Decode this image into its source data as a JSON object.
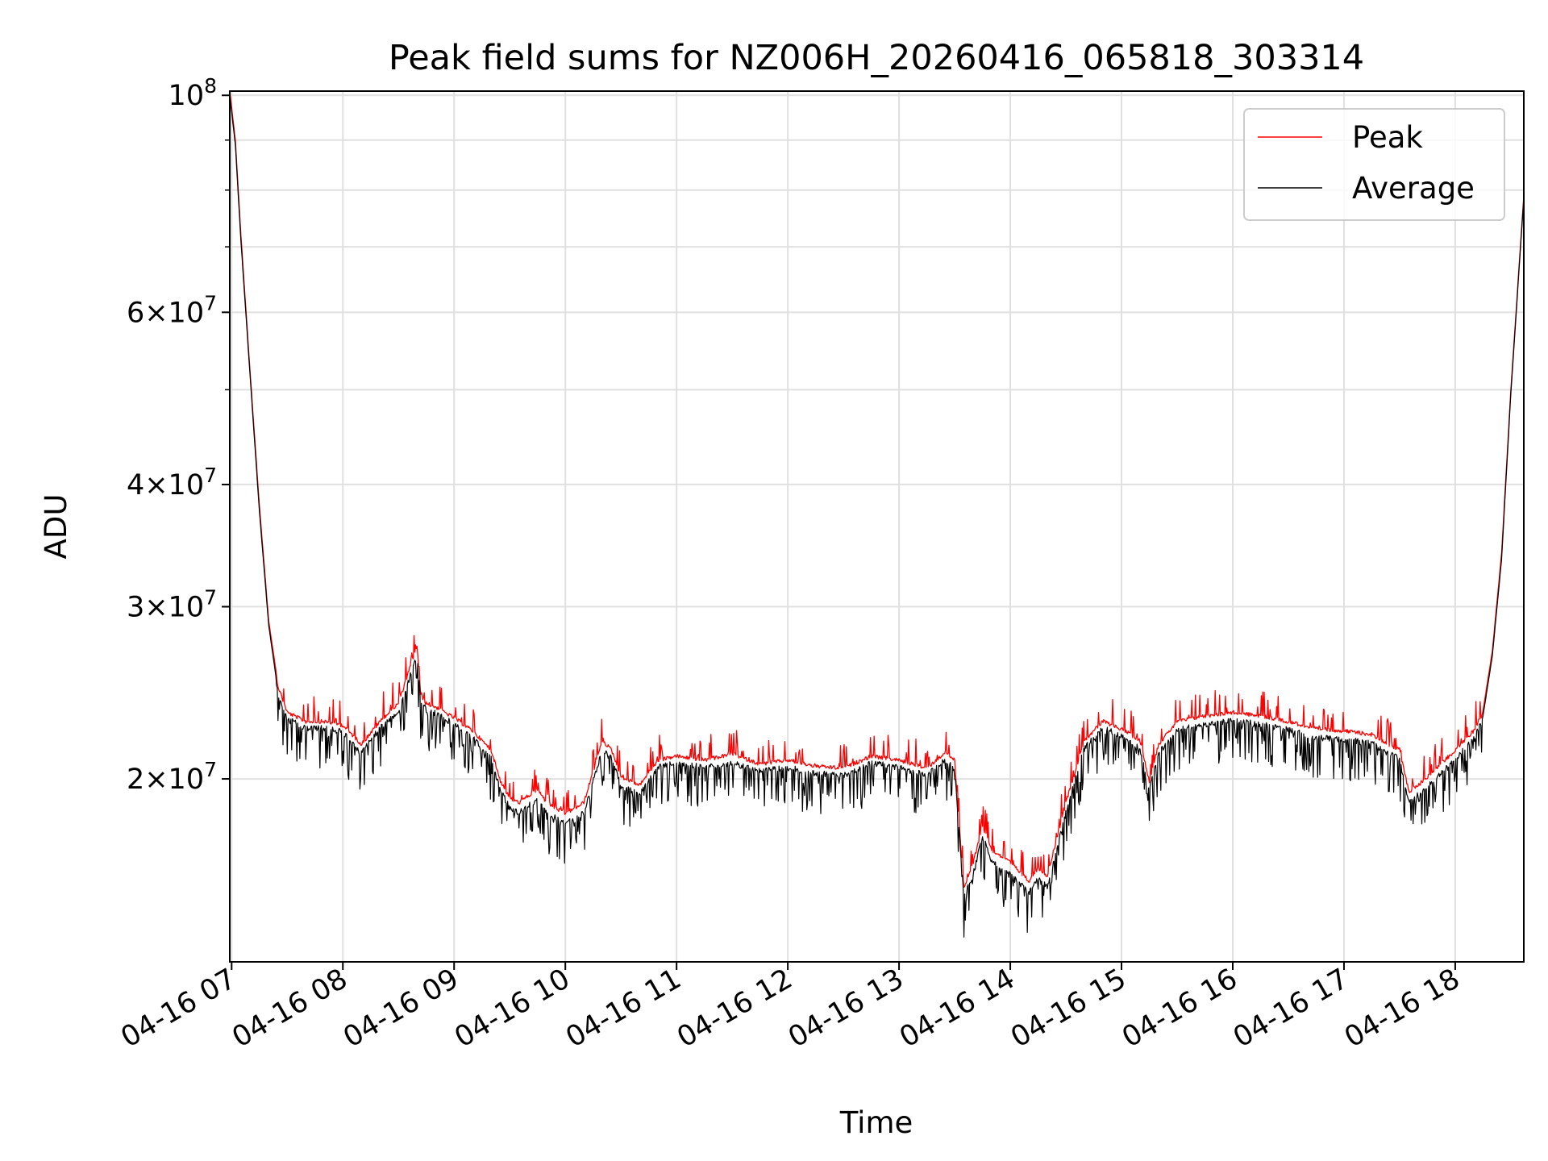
{
  "chart_data": {
    "type": "line",
    "title": "Peak field sums for NZ006H_20260416_065818_303314",
    "xlabel": "Time",
    "ylabel": "ADU",
    "yscale": "log",
    "ylim": [
      13000000,
      101000000
    ],
    "xlim": [
      "04-16 06:59",
      "04-16 18:37"
    ],
    "x_tick_labels": [
      "04-16 07",
      "04-16 08",
      "04-16 09",
      "04-16 10",
      "04-16 11",
      "04-16 12",
      "04-16 13",
      "04-16 14",
      "04-16 15",
      "04-16 16",
      "04-16 17",
      "04-16 18"
    ],
    "y_tick_labels": [
      {
        "value": 20000000,
        "mantissa": "2",
        "exponent": "7"
      },
      {
        "value": 30000000,
        "mantissa": "3",
        "exponent": "7"
      },
      {
        "value": 40000000,
        "mantissa": "4",
        "exponent": "7"
      },
      {
        "value": 60000000,
        "mantissa": "6",
        "exponent": "7"
      },
      {
        "value": 100000000,
        "mantissa": "",
        "exponent": "8"
      }
    ],
    "y_tick_base": "10",
    "y_tick_times": "×",
    "grid": true,
    "legend_position": "top-right",
    "series": [
      {
        "name": "Peak",
        "color": "#ff0000",
        "x": [
          "06:59",
          "07:02",
          "07:05",
          "07:10",
          "07:15",
          "07:20",
          "07:25",
          "07:30",
          "07:40",
          "07:50",
          "08:00",
          "08:10",
          "08:20",
          "08:25",
          "08:30",
          "08:40",
          "08:42",
          "08:45",
          "08:50",
          "09:00",
          "09:10",
          "09:20",
          "09:25",
          "09:30",
          "09:35",
          "09:40",
          "09:45",
          "09:50",
          "10:00",
          "10:10",
          "10:20",
          "10:25",
          "10:30",
          "10:40",
          "10:50",
          "11:00",
          "11:15",
          "11:30",
          "11:45",
          "12:00",
          "12:15",
          "12:30",
          "12:45",
          "13:00",
          "13:15",
          "13:25",
          "13:30",
          "13:35",
          "13:40",
          "13:45",
          "13:50",
          "14:00",
          "14:10",
          "14:15",
          "14:20",
          "14:30",
          "14:40",
          "14:50",
          "15:00",
          "15:10",
          "15:15",
          "15:20",
          "15:30",
          "15:45",
          "16:00",
          "16:15",
          "16:30",
          "16:45",
          "17:00",
          "17:15",
          "17:20",
          "17:30",
          "17:35",
          "17:40",
          "17:50",
          "18:00",
          "18:10",
          "18:15",
          "18:20",
          "18:25",
          "18:30",
          "18:37"
        ],
        "y": [
          101000000,
          90000000,
          72000000,
          52000000,
          38000000,
          29000000,
          25000000,
          23500000,
          23000000,
          23000000,
          22800000,
          21800000,
          23000000,
          23500000,
          24000000,
          27500000,
          24500000,
          24000000,
          23800000,
          23200000,
          22500000,
          21500000,
          20000000,
          19200000,
          19000000,
          19300000,
          19600000,
          19000000,
          18500000,
          19000000,
          22000000,
          21500000,
          20200000,
          19800000,
          21000000,
          21200000,
          21000000,
          21300000,
          20800000,
          21000000,
          20700000,
          20600000,
          21200000,
          21000000,
          20600000,
          21400000,
          21000000,
          15500000,
          16500000,
          18000000,
          17000000,
          16500000,
          15800000,
          16300000,
          16000000,
          19000000,
          22000000,
          23000000,
          22600000,
          22000000,
          20000000,
          21800000,
          23000000,
          23300000,
          23500000,
          23300000,
          23000000,
          22600000,
          22500000,
          22300000,
          22000000,
          21500000,
          19500000,
          19800000,
          20600000,
          21500000,
          22500000,
          23500000,
          27000000,
          34000000,
          50000000,
          79000000
        ]
      },
      {
        "name": "Average",
        "color": "#000000",
        "x": [
          "06:59",
          "07:02",
          "07:05",
          "07:10",
          "07:15",
          "07:20",
          "07:25",
          "07:30",
          "07:40",
          "07:50",
          "08:00",
          "08:10",
          "08:20",
          "08:25",
          "08:30",
          "08:40",
          "08:42",
          "08:45",
          "08:50",
          "09:00",
          "09:10",
          "09:20",
          "09:25",
          "09:30",
          "09:35",
          "09:40",
          "09:45",
          "09:50",
          "10:00",
          "10:10",
          "10:20",
          "10:25",
          "10:30",
          "10:40",
          "10:50",
          "11:00",
          "11:15",
          "11:30",
          "11:45",
          "12:00",
          "12:15",
          "12:30",
          "12:45",
          "13:00",
          "13:15",
          "13:25",
          "13:30",
          "13:35",
          "13:40",
          "13:45",
          "13:50",
          "14:00",
          "14:10",
          "14:15",
          "14:20",
          "14:30",
          "14:40",
          "14:50",
          "15:00",
          "15:10",
          "15:15",
          "15:20",
          "15:30",
          "15:45",
          "16:00",
          "16:15",
          "16:30",
          "16:45",
          "17:00",
          "17:15",
          "17:20",
          "17:30",
          "17:35",
          "17:40",
          "17:50",
          "18:00",
          "18:10",
          "18:15",
          "18:20",
          "18:25",
          "18:30",
          "18:37"
        ],
        "y": [
          100000000,
          89000000,
          71000000,
          51500000,
          37500000,
          28700000,
          24600000,
          23200000,
          22700000,
          22700000,
          22500000,
          21400000,
          22700000,
          23100000,
          23600000,
          27000000,
          24200000,
          23700000,
          23500000,
          22900000,
          22200000,
          21100000,
          19600000,
          18800000,
          18600000,
          18900000,
          19200000,
          18600000,
          18100000,
          18600000,
          21600000,
          21100000,
          19800000,
          19400000,
          20700000,
          20900000,
          20700000,
          20900000,
          20500000,
          20700000,
          20400000,
          20300000,
          20900000,
          20700000,
          20300000,
          21100000,
          20700000,
          15200000,
          16100000,
          17600000,
          16600000,
          16100000,
          15400000,
          15900000,
          15600000,
          18600000,
          21700000,
          22700000,
          22300000,
          21600000,
          19600000,
          21400000,
          22600000,
          22900000,
          23100000,
          22900000,
          22600000,
          22200000,
          22100000,
          21900000,
          21600000,
          21100000,
          19100000,
          19400000,
          20200000,
          21100000,
          22100000,
          23200000,
          26700000,
          33500000,
          49500000,
          78500000
        ]
      }
    ]
  }
}
